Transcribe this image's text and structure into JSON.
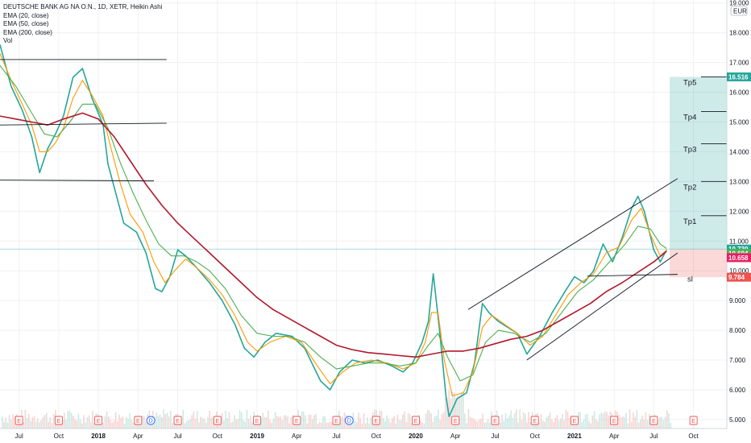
{
  "header": {
    "title": "DEUTSCHE BANK AG NA O.N., 1D, XETR, Heikin Ashi",
    "indicators": [
      "EMA (20, close)",
      "EMA (50, close)",
      "EMA (200, close)",
      "Vol"
    ]
  },
  "currency": "EUR",
  "chart_data": {
    "type": "line",
    "title": "DEUTSCHE BANK AG NA O.N., 1D, XETR, Heikin Ashi",
    "y_ticks": [
      "19.000",
      "18.000",
      "17.000",
      "16.000",
      "15.000",
      "14.000",
      "13.000",
      "12.000",
      "11.000",
      "10.000",
      "9.000",
      "8.000",
      "7.000",
      "6.000",
      "5.000"
    ],
    "ylim": [
      4.7,
      19.1
    ],
    "x_ticks": [
      "Jul",
      "Oct",
      "2018",
      "Apr",
      "Jul",
      "Oct",
      "2019",
      "Apr",
      "Jul",
      "Oct",
      "2020",
      "Apr",
      "Jul",
      "Oct",
      "2021",
      "Apr",
      "Jul",
      "Oct"
    ],
    "xlim": [
      2017.38,
      2021.96
    ],
    "series": [
      {
        "key": "price",
        "color": "#26a69a",
        "points": [
          [
            2017.38,
            17.6
          ],
          [
            2017.45,
            16.2
          ],
          [
            2017.52,
            15.4
          ],
          [
            2017.58,
            14.5
          ],
          [
            2017.63,
            13.3
          ],
          [
            2017.68,
            14.1
          ],
          [
            2017.73,
            14.6
          ],
          [
            2017.78,
            15.2
          ],
          [
            2017.84,
            16.5
          ],
          [
            2017.9,
            16.8
          ],
          [
            2017.96,
            15.8
          ],
          [
            2018.03,
            14.9
          ],
          [
            2018.06,
            13.6
          ],
          [
            2018.1,
            12.8
          ],
          [
            2018.16,
            11.6
          ],
          [
            2018.24,
            11.3
          ],
          [
            2018.3,
            10.6
          ],
          [
            2018.36,
            9.4
          ],
          [
            2018.4,
            9.3
          ],
          [
            2018.45,
            9.8
          ],
          [
            2018.5,
            10.7
          ],
          [
            2018.55,
            10.5
          ],
          [
            2018.62,
            10.1
          ],
          [
            2018.7,
            9.6
          ],
          [
            2018.78,
            9.0
          ],
          [
            2018.86,
            8.2
          ],
          [
            2018.92,
            7.4
          ],
          [
            2018.98,
            7.1
          ],
          [
            2019.05,
            7.6
          ],
          [
            2019.12,
            7.9
          ],
          [
            2019.22,
            7.8
          ],
          [
            2019.3,
            7.4
          ],
          [
            2019.4,
            6.3
          ],
          [
            2019.46,
            6.0
          ],
          [
            2019.52,
            6.6
          ],
          [
            2019.6,
            7.0
          ],
          [
            2019.68,
            6.9
          ],
          [
            2019.76,
            7.0
          ],
          [
            2019.85,
            6.8
          ],
          [
            2019.92,
            6.6
          ],
          [
            2019.98,
            6.9
          ],
          [
            2020.04,
            7.6
          ],
          [
            2020.08,
            8.3
          ],
          [
            2020.11,
            9.9
          ],
          [
            2020.15,
            8.0
          ],
          [
            2020.19,
            5.8
          ],
          [
            2020.21,
            5.1
          ],
          [
            2020.26,
            5.7
          ],
          [
            2020.32,
            5.9
          ],
          [
            2020.37,
            6.9
          ],
          [
            2020.42,
            8.9
          ],
          [
            2020.46,
            8.6
          ],
          [
            2020.52,
            8.3
          ],
          [
            2020.58,
            8.1
          ],
          [
            2020.64,
            7.9
          ],
          [
            2020.7,
            7.2
          ],
          [
            2020.78,
            7.8
          ],
          [
            2020.86,
            8.6
          ],
          [
            2020.94,
            9.3
          ],
          [
            2021.0,
            9.8
          ],
          [
            2021.06,
            9.6
          ],
          [
            2021.12,
            10.0
          ],
          [
            2021.18,
            10.9
          ],
          [
            2021.24,
            10.3
          ],
          [
            2021.3,
            11.1
          ],
          [
            2021.36,
            12.1
          ],
          [
            2021.4,
            12.5
          ],
          [
            2021.44,
            12.0
          ],
          [
            2021.5,
            10.7
          ],
          [
            2021.54,
            10.3
          ],
          [
            2021.58,
            10.7
          ]
        ]
      },
      {
        "key": "ema20",
        "color": "#ff9800",
        "points": [
          [
            2017.38,
            17.3
          ],
          [
            2017.45,
            16.4
          ],
          [
            2017.52,
            15.6
          ],
          [
            2017.58,
            14.9
          ],
          [
            2017.63,
            14.0
          ],
          [
            2017.68,
            14.0
          ],
          [
            2017.73,
            14.3
          ],
          [
            2017.78,
            14.8
          ],
          [
            2017.84,
            15.8
          ],
          [
            2017.9,
            16.4
          ],
          [
            2017.96,
            15.9
          ],
          [
            2018.03,
            15.2
          ],
          [
            2018.08,
            14.1
          ],
          [
            2018.14,
            12.9
          ],
          [
            2018.2,
            11.9
          ],
          [
            2018.28,
            11.3
          ],
          [
            2018.35,
            10.3
          ],
          [
            2018.42,
            9.6
          ],
          [
            2018.48,
            10.0
          ],
          [
            2018.55,
            10.4
          ],
          [
            2018.62,
            10.1
          ],
          [
            2018.7,
            9.7
          ],
          [
            2018.78,
            9.2
          ],
          [
            2018.86,
            8.5
          ],
          [
            2018.94,
            7.6
          ],
          [
            2019.0,
            7.3
          ],
          [
            2019.08,
            7.6
          ],
          [
            2019.18,
            7.8
          ],
          [
            2019.28,
            7.6
          ],
          [
            2019.38,
            6.8
          ],
          [
            2019.46,
            6.2
          ],
          [
            2019.54,
            6.6
          ],
          [
            2019.62,
            6.9
          ],
          [
            2019.72,
            7.0
          ],
          [
            2019.82,
            6.9
          ],
          [
            2019.92,
            6.7
          ],
          [
            2020.0,
            6.9
          ],
          [
            2020.06,
            7.6
          ],
          [
            2020.1,
            8.6
          ],
          [
            2020.14,
            8.6
          ],
          [
            2020.18,
            7.0
          ],
          [
            2020.23,
            5.8
          ],
          [
            2020.3,
            5.9
          ],
          [
            2020.36,
            6.6
          ],
          [
            2020.42,
            8.1
          ],
          [
            2020.48,
            8.5
          ],
          [
            2020.56,
            8.2
          ],
          [
            2020.64,
            7.9
          ],
          [
            2020.72,
            7.5
          ],
          [
            2020.8,
            7.8
          ],
          [
            2020.88,
            8.5
          ],
          [
            2020.96,
            9.2
          ],
          [
            2021.04,
            9.6
          ],
          [
            2021.12,
            9.9
          ],
          [
            2021.2,
            10.6
          ],
          [
            2021.28,
            10.8
          ],
          [
            2021.36,
            11.7
          ],
          [
            2021.42,
            12.1
          ],
          [
            2021.48,
            11.2
          ],
          [
            2021.54,
            10.5
          ],
          [
            2021.58,
            10.69
          ]
        ]
      },
      {
        "key": "ema50",
        "color": "#4caf50",
        "points": [
          [
            2017.38,
            16.9
          ],
          [
            2017.48,
            16.2
          ],
          [
            2017.58,
            15.3
          ],
          [
            2017.66,
            14.6
          ],
          [
            2017.74,
            14.5
          ],
          [
            2017.82,
            15.0
          ],
          [
            2017.9,
            15.6
          ],
          [
            2017.98,
            15.6
          ],
          [
            2018.06,
            14.8
          ],
          [
            2018.14,
            13.6
          ],
          [
            2018.22,
            12.6
          ],
          [
            2018.3,
            11.7
          ],
          [
            2018.38,
            10.9
          ],
          [
            2018.46,
            10.5
          ],
          [
            2018.54,
            10.5
          ],
          [
            2018.62,
            10.3
          ],
          [
            2018.7,
            10.0
          ],
          [
            2018.8,
            9.4
          ],
          [
            2018.9,
            8.5
          ],
          [
            2019.0,
            7.9
          ],
          [
            2019.1,
            7.8
          ],
          [
            2019.2,
            7.8
          ],
          [
            2019.3,
            7.6
          ],
          [
            2019.4,
            7.1
          ],
          [
            2019.5,
            6.7
          ],
          [
            2019.6,
            6.8
          ],
          [
            2019.7,
            6.9
          ],
          [
            2019.8,
            6.9
          ],
          [
            2019.9,
            6.8
          ],
          [
            2020.0,
            6.9
          ],
          [
            2020.08,
            7.5
          ],
          [
            2020.14,
            7.9
          ],
          [
            2020.2,
            7.1
          ],
          [
            2020.28,
            6.3
          ],
          [
            2020.36,
            6.5
          ],
          [
            2020.44,
            7.6
          ],
          [
            2020.52,
            8.0
          ],
          [
            2020.62,
            7.9
          ],
          [
            2020.72,
            7.6
          ],
          [
            2020.82,
            7.9
          ],
          [
            2020.92,
            8.6
          ],
          [
            2021.02,
            9.3
          ],
          [
            2021.12,
            9.7
          ],
          [
            2021.22,
            10.3
          ],
          [
            2021.32,
            10.9
          ],
          [
            2021.4,
            11.5
          ],
          [
            2021.48,
            11.4
          ],
          [
            2021.54,
            10.9
          ],
          [
            2021.58,
            10.75
          ]
        ]
      },
      {
        "key": "ema200",
        "color": "#b2182b",
        "points": [
          [
            2017.38,
            15.2
          ],
          [
            2017.48,
            15.1
          ],
          [
            2017.58,
            15.0
          ],
          [
            2017.68,
            14.9
          ],
          [
            2017.78,
            15.1
          ],
          [
            2017.9,
            15.3
          ],
          [
            2018.0,
            15.1
          ],
          [
            2018.1,
            14.5
          ],
          [
            2018.2,
            13.7
          ],
          [
            2018.3,
            12.9
          ],
          [
            2018.4,
            12.2
          ],
          [
            2018.5,
            11.6
          ],
          [
            2018.6,
            11.1
          ],
          [
            2018.7,
            10.6
          ],
          [
            2018.8,
            10.1
          ],
          [
            2018.9,
            9.6
          ],
          [
            2019.0,
            9.1
          ],
          [
            2019.1,
            8.7
          ],
          [
            2019.2,
            8.4
          ],
          [
            2019.3,
            8.1
          ],
          [
            2019.4,
            7.8
          ],
          [
            2019.5,
            7.5
          ],
          [
            2019.6,
            7.35
          ],
          [
            2019.7,
            7.25
          ],
          [
            2019.8,
            7.2
          ],
          [
            2019.9,
            7.15
          ],
          [
            2020.0,
            7.1
          ],
          [
            2020.1,
            7.2
          ],
          [
            2020.2,
            7.3
          ],
          [
            2020.3,
            7.3
          ],
          [
            2020.4,
            7.4
          ],
          [
            2020.5,
            7.55
          ],
          [
            2020.6,
            7.7
          ],
          [
            2020.7,
            7.8
          ],
          [
            2020.8,
            8.0
          ],
          [
            2020.9,
            8.3
          ],
          [
            2021.0,
            8.6
          ],
          [
            2021.1,
            8.9
          ],
          [
            2021.2,
            9.3
          ],
          [
            2021.3,
            9.6
          ],
          [
            2021.4,
            9.95
          ],
          [
            2021.5,
            10.3
          ],
          [
            2021.58,
            10.658
          ]
        ]
      }
    ],
    "trendlines": [
      {
        "points": [
          [
            2017.38,
            17.1
          ],
          [
            2018.43,
            17.1
          ]
        ]
      },
      {
        "points": [
          [
            2017.38,
            14.9
          ],
          [
            2018.43,
            14.96
          ]
        ]
      },
      {
        "points": [
          [
            2017.38,
            13.05
          ],
          [
            2018.35,
            13.02
          ]
        ]
      },
      {
        "points": [
          [
            2020.33,
            8.7
          ],
          [
            2021.65,
            13.1
          ]
        ]
      },
      {
        "points": [
          [
            2020.7,
            7.0
          ],
          [
            2021.65,
            10.6
          ]
        ]
      },
      {
        "points": [
          [
            2021.08,
            9.82
          ],
          [
            2021.65,
            9.88
          ]
        ]
      }
    ],
    "targets": [
      {
        "label": "Tp5",
        "value": 16.516
      },
      {
        "label": "Tp4",
        "value": 15.35
      },
      {
        "label": "Tp3",
        "value": 14.27
      },
      {
        "label": "Tp2",
        "value": 13.0
      },
      {
        "label": "Tp1",
        "value": 11.85
      },
      {
        "label": "sl",
        "value": 9.72
      }
    ],
    "risk_reward": {
      "x_start": 2021.6,
      "x_end": 2021.96,
      "entry": 10.73,
      "target": 16.516,
      "stop": 9.784
    },
    "price_tags": [
      {
        "value": 16.516,
        "label": "16.516",
        "color": "#26a69a"
      },
      {
        "value": 10.73,
        "label": "10.730",
        "color": "#26a69a"
      },
      {
        "value": 10.694,
        "label": "10.694",
        "color": "#4caf50"
      },
      {
        "value": 10.658,
        "label": "10.658",
        "color": "#e91e63"
      },
      {
        "value": 9.784,
        "label": "9.784",
        "color": "#ef5350"
      }
    ],
    "events": [
      {
        "x": 2017.5,
        "letter": "E"
      },
      {
        "x": 2017.75,
        "letter": "E"
      },
      {
        "x": 2018.0,
        "letter": "E"
      },
      {
        "x": 2018.25,
        "letter": "E"
      },
      {
        "x": 2018.33,
        "letter": "D"
      },
      {
        "x": 2018.5,
        "letter": "E"
      },
      {
        "x": 2018.75,
        "letter": "E"
      },
      {
        "x": 2019.0,
        "letter": "E"
      },
      {
        "x": 2019.25,
        "letter": "E"
      },
      {
        "x": 2019.5,
        "letter": "E"
      },
      {
        "x": 2019.58,
        "letter": "D"
      },
      {
        "x": 2019.75,
        "letter": "E"
      },
      {
        "x": 2020.0,
        "letter": "E"
      },
      {
        "x": 2020.25,
        "letter": "E"
      },
      {
        "x": 2020.5,
        "letter": "E"
      },
      {
        "x": 2020.75,
        "letter": "E"
      },
      {
        "x": 2021.0,
        "letter": "E"
      },
      {
        "x": 2021.25,
        "letter": "E"
      },
      {
        "x": 2021.5,
        "letter": "E"
      },
      {
        "x": 2021.75,
        "letter": "E"
      }
    ],
    "grid": true
  }
}
